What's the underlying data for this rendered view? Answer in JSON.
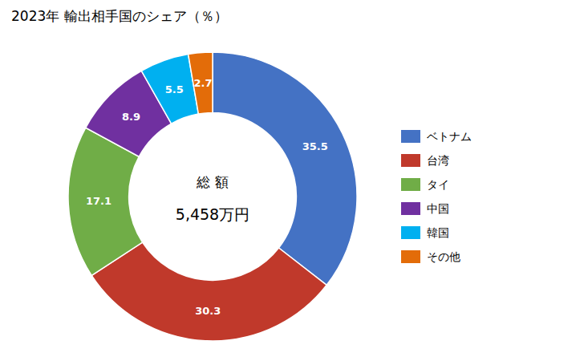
{
  "chart_data": {
    "type": "donut",
    "title": "2023年 輸出相手国のシェア（％）",
    "categories": [
      "ベトナム",
      "台湾",
      "タイ",
      "中国",
      "韓国",
      "その他"
    ],
    "values": [
      35.5,
      30.3,
      17.1,
      8.9,
      5.5,
      2.7
    ],
    "colors": [
      "#4472C4",
      "#C0392B",
      "#70AD47",
      "#7030A0",
      "#00B0F0",
      "#E36C09"
    ],
    "annotations": [
      "総 額",
      "5,458万円"
    ],
    "data_labels": true,
    "legend": "right"
  }
}
